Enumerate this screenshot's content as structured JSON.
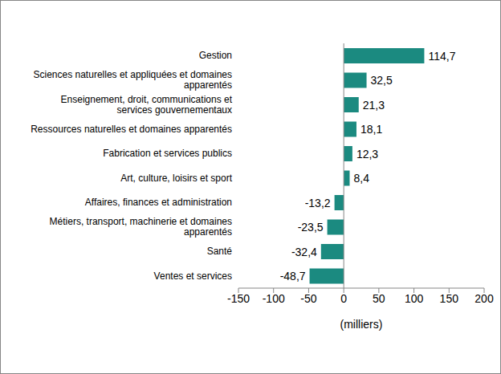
{
  "chart_data": {
    "type": "bar",
    "orientation": "horizontal",
    "categories": [
      "Gestion",
      "Sciences naturelles et appliquées et domaines apparentés",
      "Enseignement, droit, communications et services gouvernementaux",
      "Ressources naturelles et domaines apparentés",
      "Fabrication et services publics",
      "Art, culture, loisirs et sport",
      "Affaires, finances et administration",
      "Métiers, transport, machinerie et domaines apparentés",
      "Santé",
      "Ventes et services"
    ],
    "values": [
      114.7,
      32.5,
      21.3,
      18.1,
      12.3,
      8.4,
      -13.2,
      -23.5,
      -32.4,
      -48.7
    ],
    "value_labels": [
      "114,7",
      "32,5",
      "21,3",
      "18,1",
      "12,3",
      "8,4",
      "-13,2",
      "-23,5",
      "-32,4",
      "-48,7"
    ],
    "data_labels": true,
    "color": "#1b8a80",
    "x_label": "(milliers)",
    "xlim": [
      -150,
      200
    ],
    "xticks": [
      -150,
      -100,
      -50,
      0,
      50,
      100,
      150,
      200
    ],
    "grid": false
  }
}
